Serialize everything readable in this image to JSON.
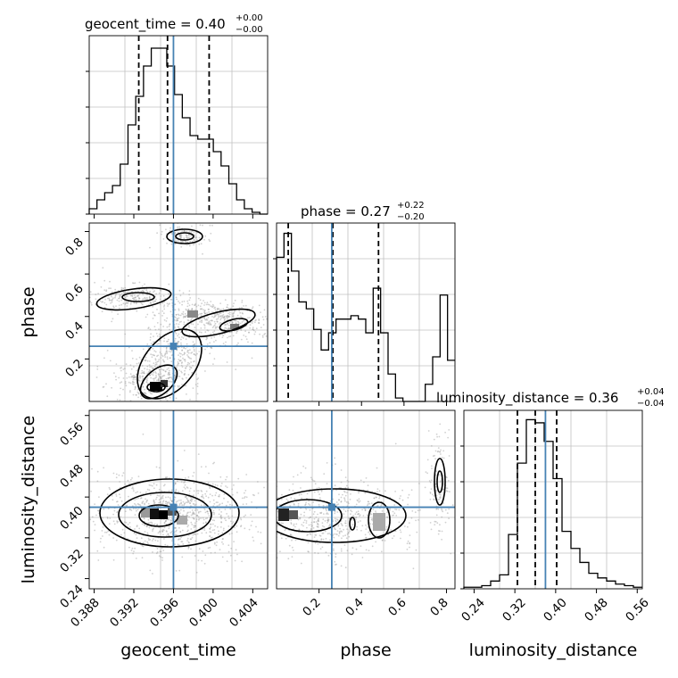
{
  "chart_data": {
    "type": "corner",
    "parameters": [
      "geocent_time",
      "phase",
      "luminosity_distance"
    ],
    "truths": {
      "geocent_time": 0.396,
      "phase": 0.26,
      "luminosity_distance": 0.38
    },
    "colors": {
      "truth": "#4682b4",
      "histogram": "#000000",
      "grid": "#c0c0c0",
      "samples": "#999999"
    },
    "grid": true,
    "diagonal": [
      {
        "parameter": "geocent_time",
        "title_main": "geocent_time = 0.40",
        "title_sup": "+0.00",
        "title_sub": "−0.00",
        "range": [
          0.3875,
          0.4055
        ],
        "quantiles": [
          0.3925,
          0.3954,
          0.3996
        ],
        "histogram": [
          3,
          8,
          12,
          16,
          28,
          50,
          66,
          83,
          93,
          93,
          83,
          67,
          54,
          44,
          42,
          42,
          35,
          27,
          17,
          8,
          3,
          1,
          0
        ],
        "y_max": 100
      },
      {
        "parameter": "phase",
        "title_main": "phase = 0.27",
        "title_sup": "+0.22",
        "title_sub": "−0.20",
        "range": [
          0.0,
          0.84
        ],
        "quantiles": [
          0.055,
          0.265,
          0.48
        ],
        "histogram": [
          42,
          49,
          38,
          29,
          27,
          21,
          15,
          20,
          24,
          24,
          25,
          24,
          20,
          33,
          20,
          8,
          1,
          0,
          0,
          0,
          5,
          13,
          31,
          12
        ],
        "y_max": 52
      },
      {
        "parameter": "luminosity_distance",
        "title_main": "luminosity_distance = 0.36",
        "title_sup": "+0.04",
        "title_sub": "−0.04",
        "range": [
          0.22,
          0.57
        ],
        "quantiles": [
          0.325,
          0.36,
          0.402
        ],
        "histogram": [
          1,
          1,
          2,
          5,
          9,
          35,
          81,
          109,
          107,
          95,
          71,
          37,
          26,
          17,
          10,
          7,
          5,
          3,
          2,
          1
        ],
        "y_max": 115
      }
    ],
    "tick_labels": {
      "geocent_time": [
        "0.388",
        "0.392",
        "0.396",
        "0.400",
        "0.404"
      ],
      "phase": [
        "0.2",
        "0.4",
        "0.6",
        "0.8"
      ],
      "luminosity_distance": [
        "0.24",
        "0.32",
        "0.40",
        "0.48",
        "0.56"
      ]
    },
    "axis_labels": {
      "geocent_time": "geocent_time",
      "phase": "phase",
      "luminosity_distance": "luminosity_distance"
    }
  }
}
